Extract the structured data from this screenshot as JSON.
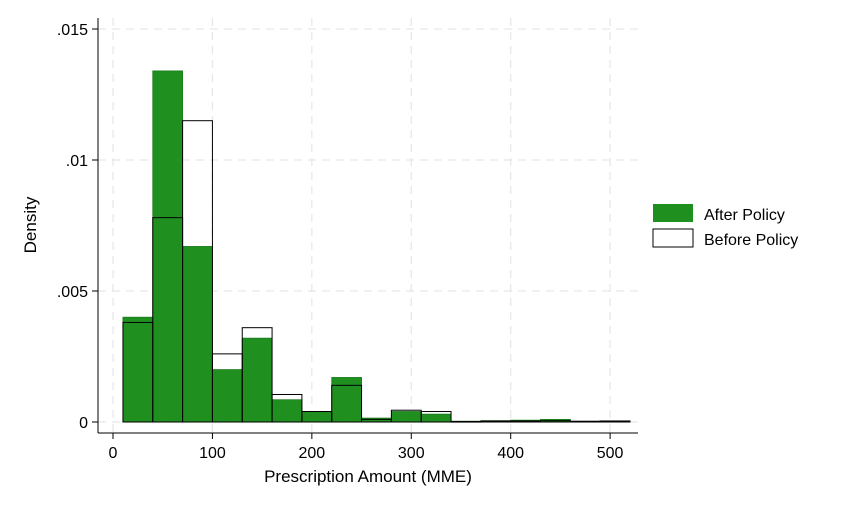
{
  "chart_data": {
    "type": "bar",
    "subtype": "overlaid-histogram",
    "title": "",
    "xlabel": "Prescription Amount (MME)",
    "ylabel": "Density",
    "xlim": [
      0,
      520
    ],
    "ylim": [
      0,
      0.015
    ],
    "x_ticks": [
      0,
      100,
      200,
      300,
      400,
      500
    ],
    "x_tick_labels": [
      "0",
      "100",
      "200",
      "300",
      "400",
      "500"
    ],
    "y_ticks": [
      0,
      0.005,
      0.01,
      0.015
    ],
    "y_tick_labels": [
      "0",
      ".005",
      ".01",
      ".015"
    ],
    "grid": true,
    "legend_position": "right",
    "bin_edges": [
      10,
      40,
      70,
      100,
      130,
      160,
      190,
      220,
      250,
      280,
      310,
      340,
      370,
      400,
      430,
      460,
      490,
      520
    ],
    "series": [
      {
        "name": "After Policy",
        "style": "filled",
        "color": "#1f8f1f",
        "values": [
          0.004,
          0.0134,
          0.0067,
          0.002,
          0.0032,
          0.00085,
          0.0004,
          0.0017,
          0.00015,
          0.0004,
          0.0003,
          3e-05,
          5e-05,
          7e-05,
          0.0001,
          2e-05,
          3e-05
        ]
      },
      {
        "name": "Before Policy",
        "style": "outline",
        "color": "#000000",
        "values": [
          0.0038,
          0.0078,
          0.0115,
          0.0026,
          0.0036,
          0.00105,
          0.0004,
          0.0014,
          0.0001,
          0.00045,
          0.0004,
          2e-05,
          4e-05,
          4e-05,
          5e-05,
          3e-05,
          4e-05
        ]
      }
    ]
  }
}
